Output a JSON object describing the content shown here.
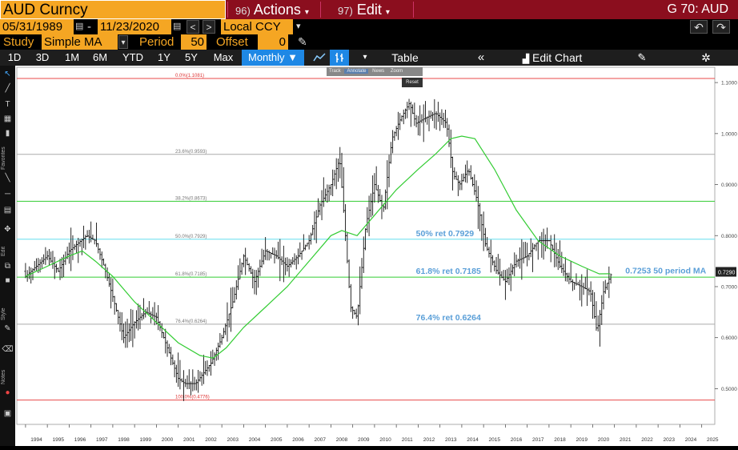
{
  "header": {
    "security": "AUD Curncy",
    "actions_num": "96)",
    "actions_label": "Actions",
    "edit_num": "97)",
    "edit_label": "Edit",
    "page_code": "G 70: AUD"
  },
  "dates": {
    "start": "05/31/1989",
    "end": "11/23/2020",
    "currency": "Local CCY"
  },
  "study": {
    "label": "Study",
    "type": "Simple MA",
    "period_label": "Period",
    "period": "50",
    "offset_label": "Offset",
    "offset": "0"
  },
  "periods": [
    "1D",
    "3D",
    "1M",
    "6M",
    "YTD",
    "1Y",
    "5Y",
    "Max"
  ],
  "frequency": "Monthly ▼",
  "table_label": "Table",
  "edit_chart_label": "Edit Chart",
  "popup": {
    "track": "Track",
    "annotate": "Annotate",
    "news": "News",
    "zoom": "Zoom",
    "reset": "Reset"
  },
  "colors": {
    "accent": "#f5a623",
    "header_red": "#8b0e1e",
    "button_blue": "#1e88e5",
    "ma_line": "#33cc33",
    "fib_red": "#e84a4a",
    "fib_green": "#33cc33",
    "fib_cyan": "#66ddee",
    "fib_grey": "#aaaaaa",
    "annot_blue": "#5a9fd8"
  },
  "chart_data": {
    "type": "ohlc",
    "title": "",
    "frequency": "Monthly",
    "ylim": [
      0.43,
      1.13
    ],
    "y_ticks": [
      "1.1000",
      "1.0000",
      "0.9000",
      "0.8000",
      "0.7000",
      "0.6000",
      "0.5000"
    ],
    "x_ticks": [
      "1994",
      "1995",
      "1996",
      "1997",
      "1998",
      "1999",
      "2000",
      "2001",
      "2002",
      "2003",
      "2004",
      "2005",
      "2006",
      "2007",
      "2008",
      "2009",
      "2010",
      "2011",
      "2012",
      "2013",
      "2014",
      "2015",
      "2016",
      "2017",
      "2018",
      "2019",
      "2020",
      "2021",
      "2022",
      "2023",
      "2024",
      "2025"
    ],
    "last_price": "0.7290",
    "fib_levels": [
      {
        "label": "0.0%(1.1081)",
        "value": 1.1081,
        "color": "red"
      },
      {
        "label": "23.6%(0.9593)",
        "value": 0.9593,
        "color": "grey"
      },
      {
        "label": "38.2%(0.8673)",
        "value": 0.8673,
        "color": "green"
      },
      {
        "label": "50.0%(0.7929)",
        "value": 0.7929,
        "color": "cyan"
      },
      {
        "label": "61.8%(0.7185)",
        "value": 0.7185,
        "color": "green"
      },
      {
        "label": "76.4%(0.6264)",
        "value": 0.6264,
        "color": "grey"
      },
      {
        "label": "100.0%(0.4776)",
        "value": 0.4776,
        "color": "red"
      }
    ],
    "annotations": [
      {
        "text": "50% ret 0.7929",
        "year": 2011.9,
        "value": 0.799
      },
      {
        "text": "61.8% ret 0.7185",
        "year": 2011.9,
        "value": 0.725
      },
      {
        "text": "76.4% ret 0.6264",
        "year": 2011.9,
        "value": 0.634
      },
      {
        "text": "0.7253 50 period MA",
        "year": 2021.5,
        "value": 0.726
      }
    ],
    "price_path": [
      [
        1994.0,
        0.72
      ],
      [
        1994.5,
        0.74
      ],
      [
        1995.0,
        0.76
      ],
      [
        1995.5,
        0.73
      ],
      [
        1996.0,
        0.77
      ],
      [
        1996.8,
        0.8
      ],
      [
        1997.2,
        0.79
      ],
      [
        1997.6,
        0.74
      ],
      [
        1998.0,
        0.68
      ],
      [
        1998.5,
        0.6
      ],
      [
        1999.0,
        0.63
      ],
      [
        1999.5,
        0.65
      ],
      [
        2000.0,
        0.64
      ],
      [
        2000.5,
        0.58
      ],
      [
        2001.0,
        0.52
      ],
      [
        2001.3,
        0.51
      ],
      [
        2001.8,
        0.51
      ],
      [
        2002.5,
        0.55
      ],
      [
        2003.0,
        0.6
      ],
      [
        2003.5,
        0.67
      ],
      [
        2004.0,
        0.76
      ],
      [
        2004.5,
        0.71
      ],
      [
        2005.0,
        0.77
      ],
      [
        2005.5,
        0.76
      ],
      [
        2006.0,
        0.74
      ],
      [
        2006.5,
        0.76
      ],
      [
        2007.0,
        0.79
      ],
      [
        2007.5,
        0.86
      ],
      [
        2008.0,
        0.9
      ],
      [
        2008.4,
        0.95
      ],
      [
        2008.6,
        0.84
      ],
      [
        2008.9,
        0.66
      ],
      [
        2009.2,
        0.64
      ],
      [
        2009.6,
        0.82
      ],
      [
        2010.0,
        0.9
      ],
      [
        2010.4,
        0.85
      ],
      [
        2010.8,
        0.99
      ],
      [
        2011.2,
        1.03
      ],
      [
        2011.6,
        1.06
      ],
      [
        2011.9,
        1.02
      ],
      [
        2012.3,
        1.03
      ],
      [
        2012.8,
        1.04
      ],
      [
        2013.3,
        1.02
      ],
      [
        2013.6,
        0.92
      ],
      [
        2013.9,
        0.9
      ],
      [
        2014.3,
        0.93
      ],
      [
        2014.7,
        0.87
      ],
      [
        2015.1,
        0.78
      ],
      [
        2015.6,
        0.73
      ],
      [
        2016.0,
        0.71
      ],
      [
        2016.5,
        0.75
      ],
      [
        2017.0,
        0.76
      ],
      [
        2017.5,
        0.79
      ],
      [
        2018.0,
        0.79
      ],
      [
        2018.5,
        0.74
      ],
      [
        2019.0,
        0.71
      ],
      [
        2019.5,
        0.7
      ],
      [
        2019.9,
        0.69
      ],
      [
        2020.2,
        0.61
      ],
      [
        2020.5,
        0.69
      ],
      [
        2020.9,
        0.73
      ]
    ],
    "ma_path": [
      [
        1994.0,
        0.72
      ],
      [
        1995.0,
        0.74
      ],
      [
        1996.0,
        0.76
      ],
      [
        1996.6,
        0.77
      ],
      [
        1997.2,
        0.75
      ],
      [
        1998.0,
        0.72
      ],
      [
        1999.0,
        0.67
      ],
      [
        2000.0,
        0.63
      ],
      [
        2001.0,
        0.59
      ],
      [
        2002.0,
        0.565
      ],
      [
        2002.6,
        0.56
      ],
      [
        2003.2,
        0.58
      ],
      [
        2004.0,
        0.62
      ],
      [
        2005.0,
        0.66
      ],
      [
        2006.0,
        0.7
      ],
      [
        2007.0,
        0.75
      ],
      [
        2008.0,
        0.8
      ],
      [
        2008.5,
        0.81
      ],
      [
        2009.2,
        0.8
      ],
      [
        2010.0,
        0.84
      ],
      [
        2011.0,
        0.89
      ],
      [
        2012.0,
        0.93
      ],
      [
        2012.8,
        0.96
      ],
      [
        2013.5,
        0.99
      ],
      [
        2014.0,
        0.995
      ],
      [
        2014.6,
        0.99
      ],
      [
        2015.5,
        0.93
      ],
      [
        2016.5,
        0.85
      ],
      [
        2017.5,
        0.79
      ],
      [
        2018.5,
        0.76
      ],
      [
        2019.5,
        0.74
      ],
      [
        2020.3,
        0.725
      ],
      [
        2020.8,
        0.7253
      ]
    ]
  }
}
